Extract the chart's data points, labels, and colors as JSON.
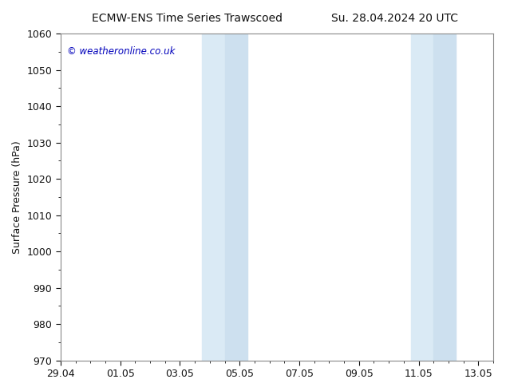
{
  "title_left": "ECMW-ENS Time Series Trawscoed",
  "title_right": "Su. 28.04.2024 20 UTC",
  "ylabel": "Surface Pressure (hPa)",
  "ylim": [
    970,
    1060
  ],
  "yticks": [
    970,
    980,
    990,
    1000,
    1010,
    1020,
    1030,
    1040,
    1050,
    1060
  ],
  "xtick_labels": [
    "29.04",
    "01.05",
    "03.05",
    "05.05",
    "07.05",
    "09.05",
    "11.05",
    "13.05"
  ],
  "xtick_positions": [
    0,
    2,
    4,
    6,
    8,
    10,
    12,
    14
  ],
  "xlim": [
    0,
    14.5
  ],
  "shaded_bands": [
    {
      "x_start": 4.75,
      "x_end": 5.5
    },
    {
      "x_start": 5.5,
      "x_end": 6.25
    },
    {
      "x_start": 11.75,
      "x_end": 12.5
    },
    {
      "x_start": 12.5,
      "x_end": 13.25
    }
  ],
  "shade_color1": "#daeaf5",
  "shade_color2": "#cde0ef",
  "background_color": "#ffffff",
  "plot_bg_color": "#ffffff",
  "border_color": "#888888",
  "watermark_text": "© weatheronline.co.uk",
  "watermark_color": "#0000bb",
  "title_color": "#111111",
  "tick_color": "#111111",
  "ylabel_color": "#111111",
  "title_fontsize": 10,
  "tick_fontsize": 9,
  "ylabel_fontsize": 9
}
